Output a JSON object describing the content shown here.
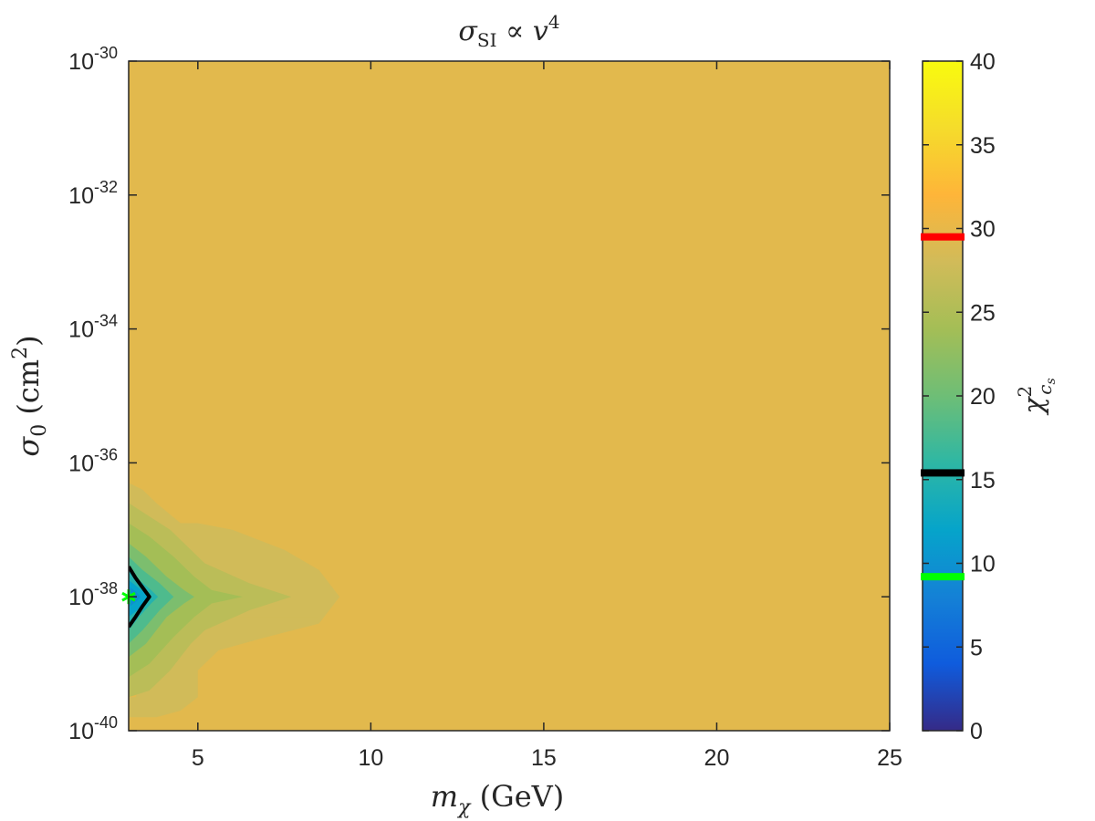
{
  "chart_data": {
    "type": "heatmap",
    "title": {
      "base": "σ",
      "sub": "SI",
      "rest": " ∝ ",
      "var": "v",
      "sup": "4"
    },
    "xlabel": {
      "base": "m",
      "sub": "χ",
      "rest": " (GeV)"
    },
    "ylabel": {
      "base": "σ",
      "sub": "0",
      "rest": " (cm",
      "sup": "2",
      "close": ")"
    },
    "colorbar_label": {
      "base": "χ",
      "sup": "2",
      "sub": "c",
      "subsub": "s"
    },
    "xlim": [
      3,
      25
    ],
    "ylim_log10": [
      -40,
      -30
    ],
    "x_ticks": [
      5,
      10,
      15,
      20,
      25
    ],
    "y_ticks": [
      {
        "base": "10",
        "exp": "-40",
        "log": -40
      },
      {
        "base": "10",
        "exp": "-38",
        "log": -38
      },
      {
        "base": "10",
        "exp": "-36",
        "log": -36
      },
      {
        "base": "10",
        "exp": "-34",
        "log": -34
      },
      {
        "base": "10",
        "exp": "-32",
        "log": -32
      },
      {
        "base": "10",
        "exp": "-30",
        "log": -30
      }
    ],
    "colorbar_range": [
      0,
      40
    ],
    "colorbar_ticks": [
      0,
      5,
      10,
      15,
      20,
      25,
      30,
      35,
      40
    ],
    "colormap": "parula",
    "background_value": 29.5,
    "threshold_markers": [
      {
        "value": 29.5,
        "color": "#ff0000"
      },
      {
        "value": 15.4,
        "color": "#000000"
      },
      {
        "value": 9.2,
        "color": "#00ff00"
      }
    ],
    "contour_regions": [
      {
        "value": 28.0,
        "points": [
          [
            3,
            -39.5
          ],
          [
            3.2,
            -39.5
          ],
          [
            3.6,
            -39.0
          ],
          [
            4.0,
            -38.6
          ],
          [
            4.8,
            -38.5
          ],
          [
            5,
            -38.3
          ],
          [
            6,
            -38.1
          ],
          [
            7,
            -37.9
          ],
          [
            8.5,
            -37.6
          ],
          [
            9.1,
            -38.0
          ],
          [
            8.5,
            -38.4
          ],
          [
            7,
            -38.6
          ],
          [
            5.6,
            -38.8
          ],
          [
            5,
            -39.1
          ],
          [
            5,
            -39.5
          ],
          [
            4.5,
            -39.7
          ],
          [
            3.8,
            -39.8
          ],
          [
            3,
            -39.8
          ]
        ],
        "upper": [
          [
            3,
            -36.3
          ],
          [
            3.4,
            -36.4
          ],
          [
            3.8,
            -36.6
          ],
          [
            4.5,
            -36.9
          ],
          [
            5,
            -36.9
          ],
          [
            6,
            -37.0
          ],
          [
            7.5,
            -37.3
          ],
          [
            8.5,
            -37.6
          ]
        ]
      },
      {
        "value": 26.0,
        "points": [
          [
            3,
            -36.6
          ],
          [
            3.6,
            -36.8
          ],
          [
            4.2,
            -37.0
          ],
          [
            4.8,
            -37.3
          ],
          [
            5.2,
            -37.5
          ],
          [
            6.5,
            -37.8
          ],
          [
            7.7,
            -38.0
          ],
          [
            6.5,
            -38.2
          ],
          [
            5.2,
            -38.5
          ],
          [
            4.8,
            -38.7
          ],
          [
            4.2,
            -39.1
          ],
          [
            3.6,
            -39.4
          ],
          [
            3,
            -39.5
          ]
        ]
      },
      {
        "value": 24.0,
        "points": [
          [
            3,
            -36.9
          ],
          [
            3.6,
            -37.1
          ],
          [
            4.3,
            -37.4
          ],
          [
            4.9,
            -37.7
          ],
          [
            5.4,
            -37.9
          ],
          [
            6.3,
            -38.0
          ],
          [
            5.4,
            -38.1
          ],
          [
            4.9,
            -38.3
          ],
          [
            4.3,
            -38.6
          ],
          [
            3.6,
            -39.0
          ],
          [
            3,
            -39.2
          ]
        ]
      },
      {
        "value": 21.0,
        "points": [
          [
            3,
            -37.2
          ],
          [
            3.5,
            -37.4
          ],
          [
            4.1,
            -37.7
          ],
          [
            4.6,
            -37.9
          ],
          [
            4.9,
            -38.0
          ],
          [
            4.6,
            -38.1
          ],
          [
            4.1,
            -38.3
          ],
          [
            3.5,
            -38.7
          ],
          [
            3,
            -38.9
          ]
        ]
      },
      {
        "value": 18.0,
        "points": [
          [
            3,
            -37.4
          ],
          [
            3.4,
            -37.6
          ],
          [
            3.9,
            -37.8
          ],
          [
            4.3,
            -38.0
          ],
          [
            3.9,
            -38.2
          ],
          [
            3.4,
            -38.5
          ],
          [
            3,
            -38.7
          ]
        ]
      },
      {
        "value": 15.0,
        "points": [
          [
            3,
            -37.6
          ],
          [
            3.3,
            -37.75
          ],
          [
            3.65,
            -37.9
          ],
          [
            3.85,
            -38.0
          ],
          [
            3.65,
            -38.1
          ],
          [
            3.3,
            -38.3
          ],
          [
            3,
            -38.5
          ]
        ]
      },
      {
        "value": 12.0,
        "points": [
          [
            3,
            -37.75
          ],
          [
            3.25,
            -37.85
          ],
          [
            3.5,
            -37.95
          ],
          [
            3.6,
            -38.0
          ],
          [
            3.5,
            -38.05
          ],
          [
            3.25,
            -38.2
          ],
          [
            3,
            -38.3
          ]
        ]
      },
      {
        "value": 9.5,
        "points": [
          [
            3,
            -37.85
          ],
          [
            3.2,
            -37.92
          ],
          [
            3.35,
            -38.0
          ],
          [
            3.2,
            -38.08
          ],
          [
            3,
            -38.15
          ]
        ]
      }
    ],
    "contour_line": {
      "color": "#000000",
      "points": [
        [
          3,
          -37.55
        ],
        [
          3.2,
          -37.72
        ],
        [
          3.4,
          -37.86
        ],
        [
          3.6,
          -38.0
        ],
        [
          3.4,
          -38.14
        ],
        [
          3.2,
          -38.3
        ],
        [
          3,
          -38.45
        ]
      ]
    },
    "best_fit_marker": {
      "x": 3.0,
      "y_log10": -38.0,
      "color": "#00ff00"
    }
  }
}
